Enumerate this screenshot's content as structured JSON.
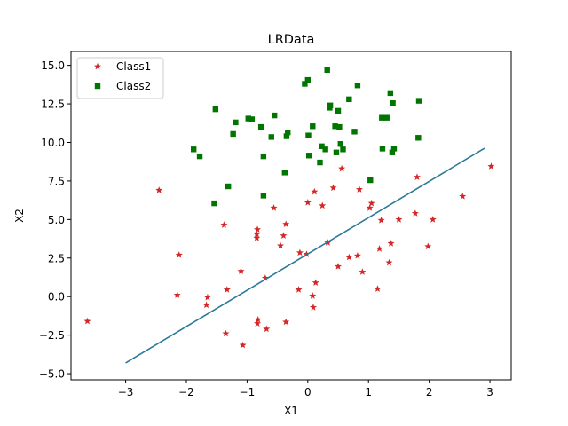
{
  "chart_data": {
    "type": "scatter",
    "title": "LRData",
    "xlabel": "X1",
    "ylabel": "X2",
    "xlim": [
      -3.9,
      3.35
    ],
    "ylim": [
      -5.4,
      15.9
    ],
    "xticks": [
      -3,
      -2,
      -1,
      0,
      1,
      2,
      3
    ],
    "yticks": [
      -5.0,
      -2.5,
      0.0,
      2.5,
      5.0,
      7.5,
      10.0,
      12.5,
      15.0
    ],
    "xtick_labels": [
      "−3",
      "−2",
      "−1",
      "0",
      "1",
      "2",
      "3"
    ],
    "ytick_labels": [
      "−5.0",
      "−2.5",
      "0.0",
      "2.5",
      "5.0",
      "7.5",
      "10.0",
      "12.5",
      "15.0"
    ],
    "grid": false,
    "legend_position": "top-left",
    "series": [
      {
        "name": "Class1",
        "marker": "star",
        "color": "#d62728",
        "points": [
          [
            -3.63,
            -1.6
          ],
          [
            -2.45,
            6.9
          ],
          [
            -2.12,
            2.7
          ],
          [
            -2.15,
            0.1
          ],
          [
            -1.65,
            -0.05
          ],
          [
            -1.67,
            -0.55
          ],
          [
            -1.38,
            4.65
          ],
          [
            -1.33,
            0.45
          ],
          [
            -1.35,
            -2.4
          ],
          [
            -1.1,
            1.65
          ],
          [
            -1.07,
            -3.15
          ],
          [
            -0.83,
            4.35
          ],
          [
            -0.84,
            4.05
          ],
          [
            -0.84,
            3.8
          ],
          [
            -0.82,
            -1.5
          ],
          [
            -0.83,
            -1.75
          ],
          [
            -0.7,
            1.2
          ],
          [
            -0.68,
            -2.1
          ],
          [
            -0.56,
            5.75
          ],
          [
            -0.45,
            3.3
          ],
          [
            -0.4,
            3.95
          ],
          [
            -0.36,
            4.7
          ],
          [
            -0.36,
            -1.65
          ],
          [
            -0.15,
            0.45
          ],
          [
            -0.13,
            2.85
          ],
          [
            -0.02,
            2.75
          ],
          [
            0.0,
            6.1
          ],
          [
            0.09,
            -0.7
          ],
          [
            0.08,
            0.05
          ],
          [
            0.11,
            6.8
          ],
          [
            0.13,
            0.9
          ],
          [
            0.24,
            5.9
          ],
          [
            0.33,
            3.5
          ],
          [
            0.42,
            7.05
          ],
          [
            0.5,
            1.95
          ],
          [
            0.56,
            8.3
          ],
          [
            0.68,
            2.55
          ],
          [
            0.82,
            2.65
          ],
          [
            0.85,
            6.95
          ],
          [
            0.9,
            1.6
          ],
          [
            1.02,
            5.75
          ],
          [
            1.05,
            6.05
          ],
          [
            1.15,
            0.5
          ],
          [
            1.18,
            3.1
          ],
          [
            1.21,
            4.95
          ],
          [
            1.34,
            2.2
          ],
          [
            1.37,
            3.45
          ],
          [
            1.5,
            5.0
          ],
          [
            1.77,
            5.4
          ],
          [
            1.8,
            7.75
          ],
          [
            1.98,
            3.25
          ],
          [
            2.06,
            5.0
          ],
          [
            2.55,
            6.5
          ],
          [
            3.02,
            8.45
          ]
        ]
      },
      {
        "name": "Class2",
        "marker": "square",
        "color": "#007500",
        "points": [
          [
            -1.88,
            9.55
          ],
          [
            -1.78,
            9.1
          ],
          [
            -1.52,
            12.15
          ],
          [
            -1.54,
            6.05
          ],
          [
            -1.31,
            7.15
          ],
          [
            -1.23,
            10.55
          ],
          [
            -1.19,
            11.3
          ],
          [
            -0.98,
            11.55
          ],
          [
            -0.92,
            11.5
          ],
          [
            -0.77,
            11.0
          ],
          [
            -0.73,
            6.55
          ],
          [
            -0.73,
            9.1
          ],
          [
            -0.6,
            10.35
          ],
          [
            -0.55,
            11.75
          ],
          [
            -0.38,
            8.05
          ],
          [
            -0.35,
            10.4
          ],
          [
            -0.33,
            10.65
          ],
          [
            -0.05,
            13.8
          ],
          [
            0.0,
            14.05
          ],
          [
            0.01,
            10.45
          ],
          [
            0.02,
            9.15
          ],
          [
            0.08,
            11.05
          ],
          [
            0.2,
            8.7
          ],
          [
            0.23,
            9.75
          ],
          [
            0.29,
            9.55
          ],
          [
            0.32,
            14.7
          ],
          [
            0.36,
            12.25
          ],
          [
            0.37,
            12.4
          ],
          [
            0.45,
            11.05
          ],
          [
            0.47,
            9.35
          ],
          [
            0.5,
            12.05
          ],
          [
            0.52,
            11.0
          ],
          [
            0.54,
            9.9
          ],
          [
            0.58,
            9.55
          ],
          [
            0.68,
            12.8
          ],
          [
            0.77,
            10.7
          ],
          [
            0.82,
            13.7
          ],
          [
            1.03,
            7.55
          ],
          [
            1.22,
            11.6
          ],
          [
            1.23,
            9.6
          ],
          [
            1.3,
            11.6
          ],
          [
            1.36,
            13.2
          ],
          [
            1.39,
            9.35
          ],
          [
            1.4,
            12.55
          ],
          [
            1.42,
            9.6
          ],
          [
            1.82,
            10.3
          ],
          [
            1.83,
            12.7
          ]
        ]
      },
      {
        "name": "",
        "marker": "line",
        "color": "#2b7a9a",
        "points": [
          [
            -3.0,
            -4.3
          ],
          [
            2.91,
            9.62
          ]
        ]
      }
    ]
  }
}
